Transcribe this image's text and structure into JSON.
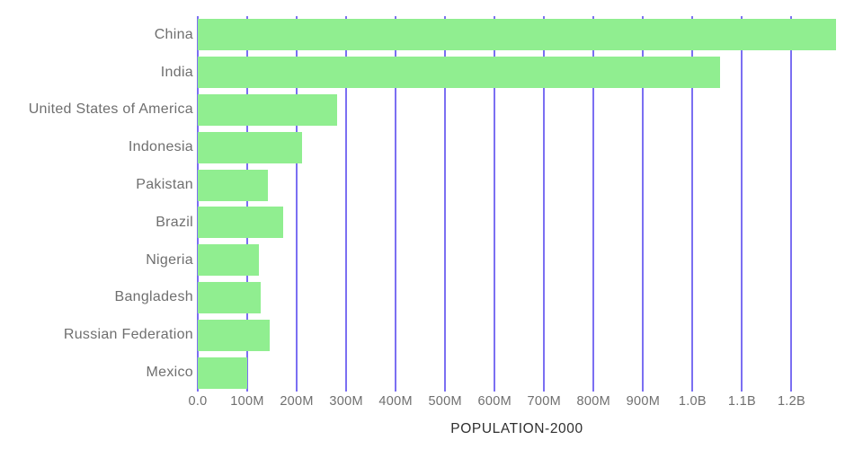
{
  "chart_data": {
    "type": "bar",
    "orientation": "horizontal",
    "title": "POPULATION-2000",
    "categories": [
      "China",
      "India",
      "United States of America",
      "Indonesia",
      "Pakistan",
      "Brazil",
      "Nigeria",
      "Bangladesh",
      "Russian Federation",
      "Mexico"
    ],
    "values_millions": [
      1290,
      1056,
      282,
      211,
      141,
      173,
      123,
      128,
      146,
      100
    ],
    "series": [
      {
        "name": "Population 2000",
        "values": [
          1290000000,
          1056000000,
          282000000,
          211000000,
          141000000,
          173000000,
          123000000,
          128000000,
          146000000,
          100000000
        ]
      }
    ],
    "xlabel": "POPULATION-2000",
    "ylabel": "",
    "x_axis": {
      "min_millions": 0,
      "max_millions": 1290,
      "tick_values_millions": [
        0,
        100,
        200,
        300,
        400,
        500,
        600,
        700,
        800,
        900,
        1000,
        1100,
        1200
      ],
      "tick_labels": [
        "0.0",
        "100M",
        "200M",
        "300M",
        "400M",
        "500M",
        "600M",
        "700M",
        "800M",
        "900M",
        "1.0B",
        "1.1B",
        "1.2B"
      ]
    },
    "grid": "vertical-only",
    "legend": "none",
    "colors": {
      "bar": "#90EE90",
      "gridline": "#7B6FF2",
      "axis_label_text": "#6F6F6F",
      "title_text": "#2F2F2F",
      "background": "#FFFFFF"
    }
  }
}
